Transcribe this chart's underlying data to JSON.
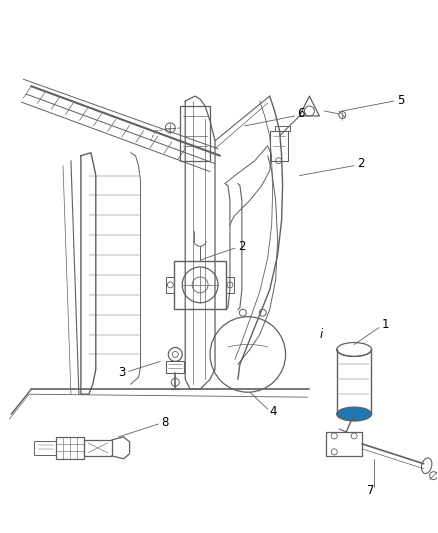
{
  "background_color": "#ffffff",
  "line_color": "#606060",
  "label_color": "#000000",
  "label_fontsize": 8.5,
  "fig_width": 4.38,
  "fig_height": 5.33,
  "dpi": 100
}
